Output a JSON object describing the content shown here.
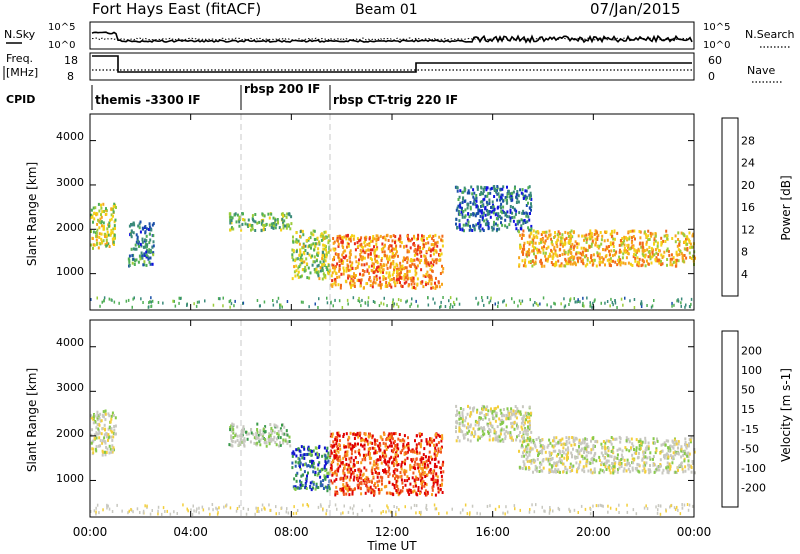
{
  "header": {
    "station": "Fort Hays East (fitACF)",
    "beam": "Beam 01",
    "date": "07/Jan/2015"
  },
  "noise_panel": {
    "left_label": "N.Sky",
    "left_ticks": [
      "10^5",
      "10^0"
    ],
    "right_label": "N.Search",
    "right_ticks": [
      "10^5",
      "10^0"
    ]
  },
  "freq_panel": {
    "left_label_lines": [
      "Freq.",
      "[MHz]"
    ],
    "left_ticks": [
      "18",
      "8"
    ],
    "right_label": "Nave",
    "right_ticks": [
      "60",
      "0"
    ]
  },
  "cpid": {
    "label": "CPID",
    "segments": [
      {
        "name": "themis -3300 IF",
        "start_hour": 0
      },
      {
        "name": "rbsp 200 IF",
        "start_hour": 6
      },
      {
        "name": "rbsp CT-trig 220 IF",
        "start_hour": 9.3
      }
    ]
  },
  "x_axis": {
    "title": "Time UT",
    "ticks": [
      "00:00",
      "04:00",
      "08:00",
      "12:00",
      "16:00",
      "20:00",
      "00:00"
    ],
    "range_hours": [
      0,
      24
    ]
  },
  "chart_data": [
    {
      "type": "heatmap",
      "panel": "power",
      "ylabel": "Slant Range [km]",
      "yticks": [
        "1000",
        "2000",
        "3000",
        "4000"
      ],
      "ylim": [
        180,
        4600
      ],
      "colorbar_label": "Power [dB]",
      "colorbar_ticks": [
        "28",
        "24",
        "20",
        "16",
        "12",
        "8",
        "4"
      ],
      "colorbar_range": [
        0,
        32
      ],
      "colors": [
        "#1010e0",
        "#1a4fa8",
        "#3a8a7a",
        "#4fae55",
        "#9ccc3a",
        "#f4d218",
        "#f7a51c",
        "#f26c1a",
        "#e82a18",
        "#d40000"
      ],
      "features": [
        {
          "hours": [
            0.0,
            1.0
          ],
          "range_km": [
            1600,
            2600
          ],
          "value": 16
        },
        {
          "hours": [
            1.5,
            2.5
          ],
          "range_km": [
            1200,
            2200
          ],
          "value": 8
        },
        {
          "hours": [
            5.5,
            8.0
          ],
          "range_km": [
            2000,
            2400
          ],
          "value": 12
        },
        {
          "hours": [
            8.0,
            9.5
          ],
          "range_km": [
            900,
            2000
          ],
          "value": 14
        },
        {
          "hours": [
            9.5,
            14.0
          ],
          "range_km": [
            700,
            1900
          ],
          "value": 22
        },
        {
          "hours": [
            14.5,
            17.5
          ],
          "range_km": [
            2000,
            3000
          ],
          "value": 6
        },
        {
          "hours": [
            17.0,
            24.0
          ],
          "range_km": [
            1200,
            2000
          ],
          "value": 20
        }
      ]
    },
    {
      "type": "heatmap",
      "panel": "velocity",
      "ylabel": "Slant Range [km]",
      "yticks": [
        "1000",
        "2000",
        "3000",
        "4000"
      ],
      "ylim": [
        180,
        4600
      ],
      "colorbar_label": "Velocity [m s-1]",
      "colorbar_ticks": [
        "200",
        "100",
        "50",
        "15",
        "-15",
        "-50",
        "-100",
        "-200"
      ],
      "colorbar_range": [
        -240,
        240
      ],
      "colors": [
        "#e00000",
        "#f25a1e",
        "#f7a020",
        "#f3cf3c",
        "#c8c8c0",
        "#c8c8c0",
        "#86c94a",
        "#3a9a4a",
        "#2a5fb0",
        "#1010d0"
      ],
      "features": [
        {
          "hours": [
            0.0,
            1.0
          ],
          "range_km": [
            1600,
            2600
          ],
          "value": 0
        },
        {
          "hours": [
            5.5,
            8.0
          ],
          "range_km": [
            1800,
            2300
          ],
          "value": 40
        },
        {
          "hours": [
            8.0,
            9.5
          ],
          "range_km": [
            800,
            1800
          ],
          "value": 150
        },
        {
          "hours": [
            9.5,
            14.0
          ],
          "range_km": [
            700,
            2100
          ],
          "value": -180
        },
        {
          "hours": [
            14.5,
            17.5
          ],
          "range_km": [
            1900,
            2700
          ],
          "value": 0
        },
        {
          "hours": [
            17.0,
            24.0
          ],
          "range_km": [
            1200,
            2000
          ],
          "value": 0
        }
      ]
    }
  ]
}
